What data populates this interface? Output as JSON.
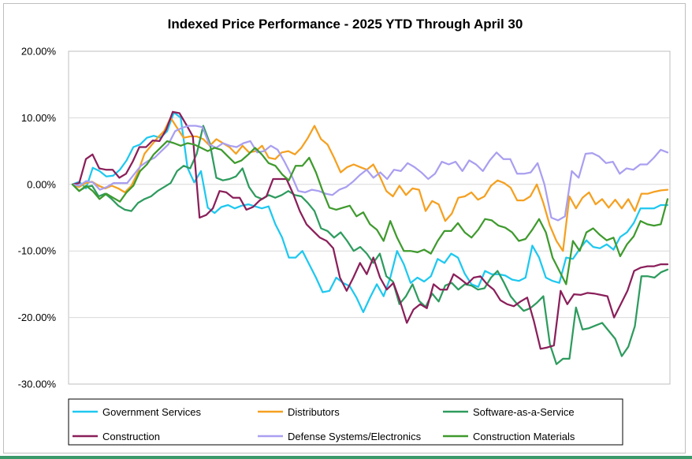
{
  "chart_data": {
    "type": "line",
    "title": "Indexed Price Performance - 2025 YTD Through April 30",
    "xlabel": "",
    "ylabel": "",
    "ylim": [
      -0.3,
      0.2
    ],
    "y_ticks": [
      {
        "value": 0.2,
        "label": "20.00%"
      },
      {
        "value": 0.1,
        "label": "10.00%"
      },
      {
        "value": 0.0,
        "label": "0.00%"
      },
      {
        "value": -0.1,
        "label": "-10.00%"
      },
      {
        "value": -0.2,
        "label": "-20.00%"
      },
      {
        "value": -0.3,
        "label": "-30.00%"
      }
    ],
    "grid": true,
    "legend_position": "bottom",
    "series": [
      {
        "name": "Government Services",
        "color": "#1ec8f0",
        "values": [
          0.0,
          0.004,
          -0.006,
          0.025,
          0.02,
          0.012,
          0.013,
          0.022,
          0.036,
          0.056,
          0.06,
          0.07,
          0.073,
          0.07,
          0.08,
          0.108,
          0.1,
          0.025,
          0.003,
          0.02,
          -0.035,
          -0.043,
          -0.034,
          -0.031,
          -0.036,
          -0.032,
          -0.03,
          -0.033,
          -0.036,
          -0.033,
          -0.06,
          -0.08,
          -0.11,
          -0.11,
          -0.1,
          -0.12,
          -0.14,
          -0.162,
          -0.16,
          -0.14,
          -0.148,
          -0.153,
          -0.17,
          -0.192,
          -0.17,
          -0.15,
          -0.168,
          -0.14,
          -0.1,
          -0.12,
          -0.148,
          -0.14,
          -0.146,
          -0.138,
          -0.112,
          -0.118,
          -0.104,
          -0.11,
          -0.134,
          -0.15,
          -0.154,
          -0.13,
          -0.135,
          -0.135,
          -0.137,
          -0.143,
          -0.145,
          -0.14,
          -0.092,
          -0.11,
          -0.14,
          -0.145,
          -0.148,
          -0.11,
          -0.112,
          -0.097,
          -0.084,
          -0.094,
          -0.096,
          -0.09,
          -0.098,
          -0.079,
          -0.072,
          -0.058,
          -0.036,
          -0.036,
          -0.036,
          -0.031,
          -0.031
        ]
      },
      {
        "name": "Distributors",
        "color": "#f5a020",
        "values": [
          0.0,
          -0.004,
          0.002,
          0.004,
          -0.002,
          -0.006,
          -0.002,
          -0.006,
          -0.012,
          -0.002,
          0.018,
          0.046,
          0.058,
          0.07,
          0.08,
          0.1,
          0.085,
          0.07,
          0.072,
          0.072,
          0.068,
          0.058,
          0.068,
          0.062,
          0.056,
          0.046,
          0.058,
          0.048,
          0.05,
          0.058,
          0.04,
          0.038,
          0.048,
          0.05,
          0.045,
          0.055,
          0.07,
          0.088,
          0.068,
          0.06,
          0.04,
          0.018,
          0.026,
          0.03,
          0.026,
          0.022,
          0.03,
          0.012,
          -0.01,
          -0.018,
          -0.002,
          -0.016,
          -0.006,
          -0.008,
          -0.04,
          -0.025,
          -0.03,
          -0.055,
          -0.044,
          -0.02,
          -0.018,
          -0.012,
          -0.023,
          -0.018,
          -0.002,
          0.006,
          0.002,
          -0.005,
          -0.024,
          -0.024,
          -0.018,
          0.0,
          -0.028,
          -0.062,
          -0.085,
          -0.1,
          -0.018,
          -0.036,
          -0.02,
          -0.012,
          -0.03,
          -0.022,
          -0.035,
          -0.023,
          -0.036,
          -0.022,
          -0.04,
          -0.014,
          -0.014,
          -0.011,
          -0.009,
          -0.008
        ]
      },
      {
        "name": "Software-as-a-Service",
        "color": "#2e9b5e",
        "values": [
          0.0,
          -0.01,
          -0.004,
          -0.002,
          -0.018,
          -0.014,
          -0.022,
          -0.032,
          -0.038,
          -0.04,
          -0.028,
          -0.022,
          -0.018,
          -0.01,
          -0.004,
          0.002,
          0.02,
          0.028,
          0.024,
          0.046,
          0.088,
          0.062,
          0.01,
          0.006,
          0.008,
          0.012,
          0.024,
          -0.004,
          -0.018,
          -0.022,
          -0.016,
          -0.02,
          -0.016,
          -0.01,
          -0.016,
          -0.018,
          -0.028,
          -0.04,
          -0.066,
          -0.07,
          -0.08,
          -0.072,
          -0.085,
          -0.1,
          -0.094,
          -0.104,
          -0.118,
          -0.104,
          -0.138,
          -0.146,
          -0.18,
          -0.168,
          -0.15,
          -0.175,
          -0.184,
          -0.164,
          -0.176,
          -0.152,
          -0.148,
          -0.158,
          -0.15,
          -0.152,
          -0.158,
          -0.156,
          -0.14,
          -0.13,
          -0.148,
          -0.168,
          -0.18,
          -0.19,
          -0.186,
          -0.178,
          -0.168,
          -0.24,
          -0.27,
          -0.262,
          -0.262,
          -0.185,
          -0.218,
          -0.216,
          -0.212,
          -0.208,
          -0.22,
          -0.232,
          -0.258,
          -0.244,
          -0.213,
          -0.138,
          -0.138,
          -0.14,
          -0.132,
          -0.128
        ]
      },
      {
        "name": "Construction",
        "color": "#8a1f5a",
        "values": [
          0.0,
          0.002,
          0.038,
          0.045,
          0.024,
          0.022,
          0.022,
          0.01,
          0.016,
          0.034,
          0.056,
          0.056,
          0.066,
          0.065,
          0.082,
          0.109,
          0.107,
          0.09,
          0.072,
          -0.05,
          -0.046,
          -0.036,
          -0.01,
          -0.012,
          -0.02,
          -0.02,
          -0.038,
          -0.034,
          -0.024,
          -0.018,
          0.008,
          0.008,
          0.008,
          -0.014,
          -0.04,
          -0.06,
          -0.07,
          -0.08,
          -0.085,
          -0.096,
          -0.14,
          -0.16,
          -0.14,
          -0.118,
          -0.135,
          -0.11,
          -0.14,
          -0.158,
          -0.148,
          -0.176,
          -0.208,
          -0.188,
          -0.18,
          -0.186,
          -0.15,
          -0.158,
          -0.158,
          -0.135,
          -0.142,
          -0.15,
          -0.14,
          -0.138,
          -0.15,
          -0.158,
          -0.174,
          -0.18,
          -0.183,
          -0.176,
          -0.17,
          -0.205,
          -0.247,
          -0.245,
          -0.242,
          -0.16,
          -0.18,
          -0.165,
          -0.166,
          -0.163,
          -0.164,
          -0.166,
          -0.168,
          -0.2,
          -0.18,
          -0.16,
          -0.13,
          -0.125,
          -0.123,
          -0.123,
          -0.12,
          -0.12
        ]
      },
      {
        "name": "Defense Systems/Electronics",
        "color": "#a99ff0",
        "values": [
          0.0,
          -0.002,
          0.005,
          0.003,
          -0.008,
          -0.004,
          0.002,
          0.002,
          0.002,
          0.015,
          0.028,
          0.035,
          0.04,
          0.05,
          0.06,
          0.08,
          0.085,
          0.088,
          0.088,
          0.086,
          0.06,
          0.055,
          0.062,
          0.058,
          0.056,
          0.062,
          0.065,
          0.048,
          0.05,
          0.058,
          0.052,
          0.034,
          0.014,
          -0.01,
          -0.012,
          -0.008,
          -0.01,
          -0.014,
          -0.016,
          -0.008,
          -0.004,
          0.004,
          0.014,
          0.022,
          0.01,
          0.018,
          0.008,
          0.022,
          0.02,
          0.032,
          0.026,
          0.018,
          0.008,
          0.016,
          0.034,
          0.03,
          0.034,
          0.02,
          0.036,
          0.03,
          0.02,
          0.036,
          0.048,
          0.038,
          0.038,
          0.016,
          0.016,
          0.018,
          0.032,
          0.0,
          -0.05,
          -0.054,
          -0.048,
          0.02,
          0.01,
          0.046,
          0.047,
          0.042,
          0.032,
          0.034,
          0.016,
          0.024,
          0.022,
          0.03,
          0.03,
          0.04,
          0.052,
          0.048
        ]
      },
      {
        "name": "Construction Materials",
        "color": "#3f9a2e",
        "values": [
          0.0,
          -0.01,
          -0.002,
          -0.01,
          -0.022,
          -0.014,
          -0.02,
          -0.026,
          -0.012,
          -0.002,
          0.02,
          0.03,
          0.045,
          0.055,
          0.065,
          0.062,
          0.058,
          0.062,
          0.06,
          0.055,
          0.05,
          0.055,
          0.052,
          0.042,
          0.032,
          0.036,
          0.045,
          0.055,
          0.045,
          0.032,
          0.028,
          0.015,
          0.006,
          0.028,
          0.028,
          0.04,
          0.018,
          -0.01,
          -0.035,
          -0.038,
          -0.035,
          -0.032,
          -0.048,
          -0.042,
          -0.06,
          -0.068,
          -0.085,
          -0.055,
          -0.08,
          -0.1,
          -0.1,
          -0.102,
          -0.098,
          -0.104,
          -0.085,
          -0.07,
          -0.07,
          -0.058,
          -0.072,
          -0.08,
          -0.068,
          -0.052,
          -0.054,
          -0.062,
          -0.065,
          -0.072,
          -0.085,
          -0.082,
          -0.068,
          -0.052,
          -0.072,
          -0.11,
          -0.13,
          -0.15,
          -0.085,
          -0.1,
          -0.072,
          -0.066,
          -0.076,
          -0.084,
          -0.08,
          -0.108,
          -0.09,
          -0.078,
          -0.055,
          -0.06,
          -0.062,
          -0.06,
          -0.022
        ]
      }
    ]
  }
}
